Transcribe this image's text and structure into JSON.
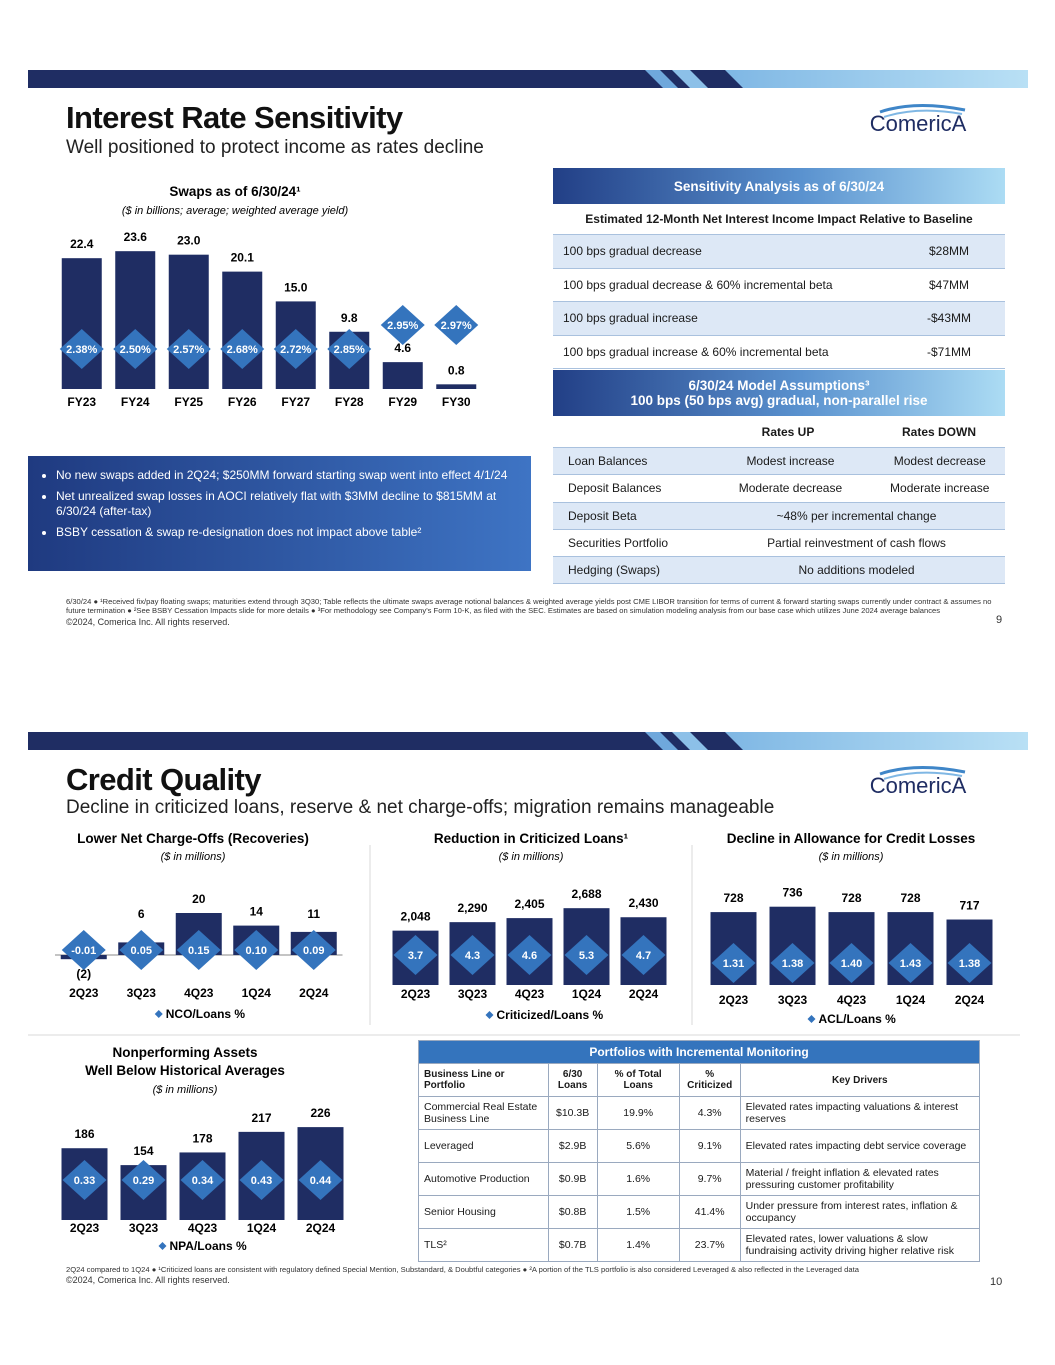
{
  "slides": [
    {
      "title": "Interest Rate Sensitivity",
      "subtitle": "Well positioned to protect income as rates decline",
      "logo": "ComericA",
      "swaps_chart": {
        "type": "bar",
        "title": "Swaps as of 6/30/24¹",
        "subtitle": "($ in billions; average; weighted average yield)",
        "categories": [
          "FY23",
          "FY24",
          "FY25",
          "FY26",
          "FY27",
          "FY28",
          "FY29",
          "FY30"
        ],
        "values": [
          22.4,
          23.6,
          23,
          20.1,
          15,
          9.8,
          4.6,
          0.8
        ],
        "value_labels": [
          "22.4",
          "23.6",
          "23.0",
          "20.1",
          "15.0",
          "9.8",
          "4.6",
          "0.8"
        ],
        "markers": [
          2.38,
          2.5,
          2.57,
          2.68,
          2.72,
          2.85,
          2.95,
          2.97
        ],
        "marker_labels": [
          "2.38%",
          "2.50%",
          "2.57%",
          "2.68%",
          "2.72%",
          "2.85%",
          "2.95%",
          "2.97%"
        ],
        "color": "#1f2d63",
        "marker_color": "#3474bd",
        "ylim": [
          0,
          25
        ]
      },
      "bullets": [
        "No new swaps added in 2Q24; $250MM forward starting swap went into effect 4/1/24",
        "Net unrealized swap losses in AOCI relatively flat with $3MM decline to $815MM at 6/30/24 (after-tax)",
        "BSBY cessation & swap re-designation does not impact above table²"
      ],
      "sensitivity": {
        "title": "Sensitivity Analysis as of 6/30/24",
        "header": "Estimated 12-Month Net Interest Income Impact Relative to Baseline",
        "rows": [
          [
            "100 bps gradual decrease",
            "$28MM"
          ],
          [
            "100 bps gradual decrease & 60% incremental beta",
            "$47MM"
          ],
          [
            "100 bps gradual increase",
            "-$43MM"
          ],
          [
            "100 bps gradual increase & 60% incremental beta",
            "-$71MM"
          ]
        ]
      },
      "assumptions": {
        "title": "6/30/24 Model Assumptions³",
        "title_line2": "100 bps (50 bps avg) gradual, non-parallel rise",
        "columns": [
          "Rates UP",
          "Rates DOWN"
        ],
        "rows": [
          [
            "Loan Balances",
            "Modest increase",
            "Modest decrease"
          ],
          [
            "Deposit Balances",
            "Moderate decrease",
            "Moderate increase"
          ],
          [
            "Deposit Beta",
            "~48% per incremental change"
          ],
          [
            "Securities Portfolio",
            "Partial reinvestment of cash flows"
          ],
          [
            "Hedging (Swaps)",
            "No additions modeled"
          ]
        ]
      },
      "footnote": "6/30/24 ● ¹Received fix/pay floating swaps; maturities extend through 3Q30; Table reflects the ultimate swaps average notional balances & weighted average yields post CME LIBOR transition for terms of current & forward starting swaps currently under contract & assumes no future termination ● ²See BSBY Cessation Impacts slide for more details ● ³For methodology see Company's Form 10-K, as filed with the SEC. Estimates are based on simulation modeling analysis from our base case which utilizes June 2024 average balances",
      "copyright": "©2024, Comerica Inc. All rights reserved.",
      "page": "9"
    },
    {
      "title": "Credit Quality",
      "subtitle": "Decline in criticized loans, reserve & net charge-offs; migration remains manageable",
      "logo": "ComericA",
      "nco_chart": {
        "type": "bar",
        "title": "Lower Net Charge-Offs (Recoveries)",
        "subtitle": "($ in millions)",
        "categories": [
          "2Q23",
          "3Q23",
          "4Q23",
          "1Q24",
          "2Q24"
        ],
        "values": [
          -2,
          6,
          20,
          14,
          11
        ],
        "value_labels": [
          "(2)",
          "6",
          "20",
          "14",
          "11"
        ],
        "markers": [
          -0.01,
          0.05,
          0.15,
          0.1,
          0.09
        ],
        "marker_labels": [
          "-0.01",
          "0.05",
          "0.15",
          "0.10",
          "0.09"
        ],
        "legend": "NCO/Loans %",
        "color": "#1f2d63",
        "marker_color": "#3474bd",
        "ylim": [
          -5,
          25
        ]
      },
      "criticized_chart": {
        "type": "bar",
        "title": "Reduction in Criticized Loans¹",
        "subtitle": "($ in millions)",
        "categories": [
          "2Q23",
          "3Q23",
          "4Q23",
          "1Q24",
          "2Q24"
        ],
        "values": [
          2048,
          2290,
          2405,
          2688,
          2430
        ],
        "value_labels": [
          "2,048",
          "2,290",
          "2,405",
          "2,688",
          "2,430"
        ],
        "markers": [
          3.7,
          4.3,
          4.6,
          5.3,
          4.7
        ],
        "legend": "Criticized/Loans %",
        "color": "#1f2d63",
        "marker_color": "#3474bd",
        "ylim": [
          500,
          2750
        ]
      },
      "acl_chart": {
        "type": "bar",
        "title": "Decline in Allowance for Credit Losses",
        "subtitle": "($ in millions)",
        "categories": [
          "2Q23",
          "3Q23",
          "4Q23",
          "1Q24",
          "2Q24"
        ],
        "values": [
          728,
          736,
          728,
          728,
          717
        ],
        "markers": [
          1.31,
          1.38,
          1.4,
          1.43,
          1.38
        ],
        "marker_labels": [
          "1.31",
          "1.38",
          "1.40",
          "1.43",
          "1.38"
        ],
        "legend": "ACL/Loans %",
        "color": "#1f2d63",
        "marker_color": "#3474bd",
        "ylim": [
          620,
          740
        ]
      },
      "npa_chart": {
        "type": "bar",
        "title": "Nonperforming Assets",
        "title_line2": "Well Below Historical Averages",
        "subtitle": "($ in millions)",
        "categories": [
          "2Q23",
          "3Q23",
          "4Q23",
          "1Q24",
          "2Q24"
        ],
        "values": [
          186,
          154,
          178,
          217,
          226
        ],
        "markers": [
          0.33,
          0.29,
          0.34,
          0.43,
          0.44
        ],
        "legend": "NPA/Loans %",
        "color": "#1f2d63",
        "marker_color": "#3474bd",
        "ylim": [
          50,
          230
        ]
      },
      "portfolios": {
        "title": "Portfolios with Incremental Monitoring",
        "columns": [
          "Business Line or Portfolio",
          "6/30 Loans",
          "% of Total Loans",
          "% Criticized",
          "Key Drivers"
        ],
        "rows": [
          [
            "Commercial Real Estate Business Line",
            "$10.3B",
            "19.9%",
            "4.3%",
            "Elevated rates impacting valuations & interest reserves"
          ],
          [
            "Leveraged",
            "$2.9B",
            "5.6%",
            "9.1%",
            "Elevated rates impacting debt service coverage"
          ],
          [
            "Automotive Production",
            "$0.9B",
            "1.6%",
            "9.7%",
            "Material / freight inflation & elevated rates pressuring customer profitability"
          ],
          [
            "Senior Housing",
            "$0.8B",
            "1.5%",
            "41.4%",
            "Under pressure from interest rates, inflation & occupancy"
          ],
          [
            "TLS²",
            "$0.7B",
            "1.4%",
            "23.7%",
            "Elevated rates, lower valuations & slow fundraising activity driving higher relative risk"
          ]
        ]
      },
      "footnote": "2Q24 compared to 1Q24 ● ¹Criticized loans are consistent with regulatory defined Special Mention, Substandard, & Doubtful categories ● ²A portion of the TLS portfolio is also considered Leveraged & also reflected in the Leveraged data",
      "copyright": "©2024, Comerica Inc. All rights reserved.",
      "page": "10"
    }
  ]
}
